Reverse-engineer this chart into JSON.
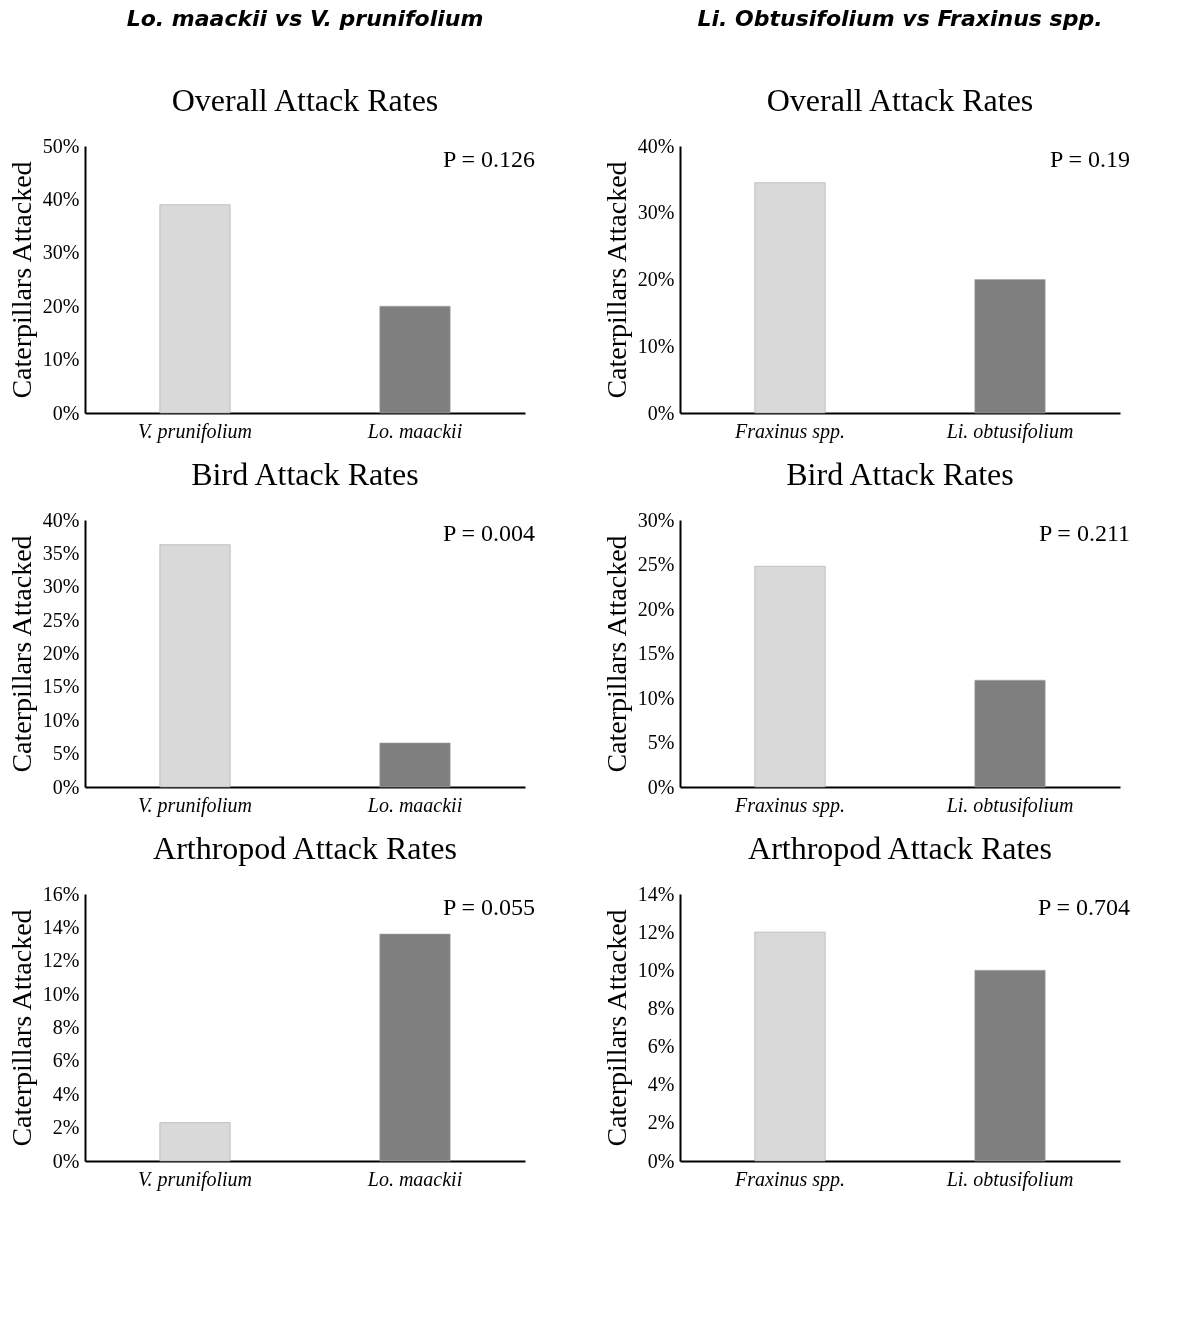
{
  "chart_data": [
    {
      "type": "bar",
      "title": "Lo. maackii vs V. prunifolium",
      "subtitle": "Overall Attack Rates",
      "ylabel": "Caterpillars Attacked",
      "categories": [
        "V. prunifolium",
        "Lo. maackii"
      ],
      "values": [
        39,
        20
      ],
      "colors": [
        "#d9d9d9",
        "#7f7f7f"
      ],
      "ylim": [
        0,
        50
      ],
      "yticks": [
        {
          "value": 0,
          "label": "0%"
        },
        {
          "value": 10,
          "label": "10%"
        },
        {
          "value": 20,
          "label": "20%"
        },
        {
          "value": 30,
          "label": "30%"
        },
        {
          "value": 40,
          "label": "40%"
        },
        {
          "value": 50,
          "label": "50%"
        }
      ],
      "annotations": [
        "P = 0.126"
      ]
    },
    {
      "type": "bar",
      "title": "Li. Obtusifolium vs Fraxinus spp.",
      "subtitle": "Overall Attack Rates",
      "ylabel": "Caterpillars Attacked",
      "categories": [
        "Fraxinus spp.",
        "Li. obtusifolium"
      ],
      "values": [
        34.5,
        20
      ],
      "colors": [
        "#d9d9d9",
        "#7f7f7f"
      ],
      "ylim": [
        0,
        40
      ],
      "yticks": [
        {
          "value": 0,
          "label": "0%"
        },
        {
          "value": 10,
          "label": "10%"
        },
        {
          "value": 20,
          "label": "20%"
        },
        {
          "value": 30,
          "label": "30%"
        },
        {
          "value": 40,
          "label": "40%"
        }
      ],
      "annotations": [
        "P = 0.19"
      ]
    },
    {
      "type": "bar",
      "title": "Bird Attack Rates",
      "ylabel": "Caterpillars Attacked",
      "categories": [
        "V. prunifolium",
        "Lo. maackii"
      ],
      "values": [
        36.3,
        6.6
      ],
      "colors": [
        "#d9d9d9",
        "#7f7f7f"
      ],
      "ylim": [
        0,
        40
      ],
      "yticks": [
        {
          "value": 0,
          "label": "0%"
        },
        {
          "value": 5,
          "label": "5%"
        },
        {
          "value": 10,
          "label": "10%"
        },
        {
          "value": 15,
          "label": "15%"
        },
        {
          "value": 20,
          "label": "20%"
        },
        {
          "value": 25,
          "label": "25%"
        },
        {
          "value": 30,
          "label": "30%"
        },
        {
          "value": 35,
          "label": "35%"
        },
        {
          "value": 40,
          "label": "40%"
        }
      ],
      "annotations": [
        "P = 0.004"
      ]
    },
    {
      "type": "bar",
      "title": "Bird Attack Rates",
      "ylabel": "Caterpillars Attacked",
      "categories": [
        "Fraxinus spp.",
        "Li. obtusifolium"
      ],
      "values": [
        24.8,
        12
      ],
      "colors": [
        "#d9d9d9",
        "#7f7f7f"
      ],
      "ylim": [
        0,
        30
      ],
      "yticks": [
        {
          "value": 0,
          "label": "0%"
        },
        {
          "value": 5,
          "label": "5%"
        },
        {
          "value": 10,
          "label": "10%"
        },
        {
          "value": 15,
          "label": "15%"
        },
        {
          "value": 20,
          "label": "20%"
        },
        {
          "value": 25,
          "label": "25%"
        },
        {
          "value": 30,
          "label": "30%"
        }
      ],
      "annotations": [
        "P = 0.211"
      ]
    },
    {
      "type": "bar",
      "title": "Arthropod Attack Rates",
      "ylabel": "Caterpillars Attacked",
      "categories": [
        "V. prunifolium",
        "Lo. maackii"
      ],
      "values": [
        2.3,
        13.6
      ],
      "colors": [
        "#d9d9d9",
        "#7f7f7f"
      ],
      "ylim": [
        0,
        16
      ],
      "yticks": [
        {
          "value": 0,
          "label": "0%"
        },
        {
          "value": 2,
          "label": "2%"
        },
        {
          "value": 4,
          "label": "4%"
        },
        {
          "value": 6,
          "label": "6%"
        },
        {
          "value": 8,
          "label": "8%"
        },
        {
          "value": 10,
          "label": "10%"
        },
        {
          "value": 12,
          "label": "12%"
        },
        {
          "value": 14,
          "label": "14%"
        },
        {
          "value": 16,
          "label": "16%"
        }
      ],
      "annotations": [
        "P = 0.055"
      ]
    },
    {
      "type": "bar",
      "title": "Arthropod Attack Rates",
      "ylabel": "Caterpillars Attacked",
      "categories": [
        "Fraxinus spp.",
        "Li. obtusifolium"
      ],
      "values": [
        12,
        10
      ],
      "colors": [
        "#d9d9d9",
        "#7f7f7f"
      ],
      "ylim": [
        0,
        14
      ],
      "yticks": [
        {
          "value": 0,
          "label": "0%"
        },
        {
          "value": 2,
          "label": "2%"
        },
        {
          "value": 4,
          "label": "4%"
        },
        {
          "value": 6,
          "label": "6%"
        },
        {
          "value": 8,
          "label": "8%"
        },
        {
          "value": 10,
          "label": "10%"
        },
        {
          "value": 12,
          "label": "12%"
        },
        {
          "value": 14,
          "label": "14%"
        }
      ],
      "annotations": [
        "P = 0.704"
      ]
    }
  ]
}
